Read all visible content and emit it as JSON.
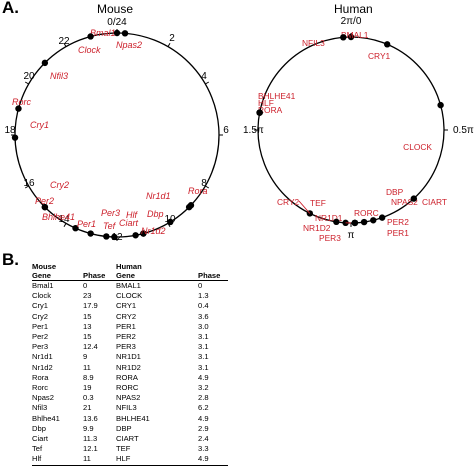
{
  "panel_a": "A.",
  "panel_b": "B.",
  "chart_data": [
    {
      "type": "scatter",
      "title": "Mouse",
      "projection": "polar-clock",
      "axis_ticks": [
        "0/24",
        "2",
        "4",
        "6",
        "8",
        "10",
        "12",
        "14",
        "16",
        "18",
        "20",
        "22"
      ],
      "period": 24,
      "points": [
        {
          "gene": "Bmal1",
          "phase": 0
        },
        {
          "gene": "Npas2",
          "phase": 0.3
        },
        {
          "gene": "Clock",
          "phase": 23
        },
        {
          "gene": "Nfil3",
          "phase": 21
        },
        {
          "gene": "Rorc",
          "phase": 19
        },
        {
          "gene": "Cry1",
          "phase": 17.9
        },
        {
          "gene": "Cry2",
          "phase": 15
        },
        {
          "gene": "Per2",
          "phase": 15
        },
        {
          "gene": "Bhlhe41",
          "phase": 13.6
        },
        {
          "gene": "Per1",
          "phase": 13
        },
        {
          "gene": "Per3",
          "phase": 12.4
        },
        {
          "gene": "Tef",
          "phase": 12.1
        },
        {
          "gene": "Ciart",
          "phase": 11.3
        },
        {
          "gene": "Hlf",
          "phase": 11
        },
        {
          "gene": "Nr1d2",
          "phase": 11
        },
        {
          "gene": "Dbp",
          "phase": 9.9
        },
        {
          "gene": "Nr1d1",
          "phase": 9
        },
        {
          "gene": "Rora",
          "phase": 8.9
        }
      ]
    },
    {
      "type": "scatter",
      "title": "Human",
      "projection": "polar-clock",
      "axis_ticks": [
        "2π/0",
        "0.5π",
        "π",
        "1.5π"
      ],
      "period": 6.2832,
      "points": [
        {
          "gene": "BMAL1",
          "phase": 0
        },
        {
          "gene": "CLOCK",
          "phase": 1.3
        },
        {
          "gene": "CRY1",
          "phase": 0.4
        },
        {
          "gene": "CRY2",
          "phase": 3.6
        },
        {
          "gene": "PER1",
          "phase": 3.0
        },
        {
          "gene": "PER2",
          "phase": 3.1
        },
        {
          "gene": "PER3",
          "phase": 3.1
        },
        {
          "gene": "NR1D1",
          "phase": 3.1
        },
        {
          "gene": "NR1D2",
          "phase": 3.1
        },
        {
          "gene": "RORA",
          "phase": 4.9
        },
        {
          "gene": "RORC",
          "phase": 3.2
        },
        {
          "gene": "NPAS2",
          "phase": 2.8
        },
        {
          "gene": "NFIL3",
          "phase": 6.2
        },
        {
          "gene": "BHLHE41",
          "phase": 4.9
        },
        {
          "gene": "DBP",
          "phase": 2.9
        },
        {
          "gene": "CIART",
          "phase": 2.4
        },
        {
          "gene": "TEF",
          "phase": 3.3
        },
        {
          "gene": "HLF",
          "phase": 4.9
        }
      ]
    },
    {
      "type": "table",
      "header_top": [
        "Mouse",
        "",
        "Human",
        ""
      ],
      "header": [
        "Gene",
        "Phase",
        "Gene",
        "Phase"
      ],
      "rows": [
        [
          "Bmal1",
          "0",
          "BMAL1",
          "0"
        ],
        [
          "Clock",
          "23",
          "CLOCK",
          "1.3"
        ],
        [
          "Cry1",
          "17.9",
          "CRY1",
          "0.4"
        ],
        [
          "Cry2",
          "15",
          "CRY2",
          "3.6"
        ],
        [
          "Per1",
          "13",
          "PER1",
          "3.0"
        ],
        [
          "Per2",
          "15",
          "PER2",
          "3.1"
        ],
        [
          "Per3",
          "12.4",
          "PER3",
          "3.1"
        ],
        [
          "Nr1d1",
          "9",
          "NR1D1",
          "3.1"
        ],
        [
          "Nr1d2",
          "11",
          "NR1D2",
          "3.1"
        ],
        [
          "Rora",
          "8.9",
          "RORA",
          "4.9"
        ],
        [
          "Rorc",
          "19",
          "RORC",
          "3.2"
        ],
        [
          "Npas2",
          "0.3",
          "NPAS2",
          "2.8"
        ],
        [
          "Nfil3",
          "21",
          "NFIL3",
          "6.2"
        ],
        [
          "Bhlhe41",
          "13.6",
          "BHLHE41",
          "4.9"
        ],
        [
          "Dbp",
          "9.9",
          "DBP",
          "2.9"
        ],
        [
          "Ciart",
          "11.3",
          "CIART",
          "2.4"
        ],
        [
          "Tef",
          "12.1",
          "TEF",
          "3.3"
        ],
        [
          "Hlf",
          "11",
          "HLF",
          "4.9"
        ]
      ]
    }
  ],
  "colors": {
    "gene_label": "#cc1f2a",
    "axis": "#000000"
  }
}
